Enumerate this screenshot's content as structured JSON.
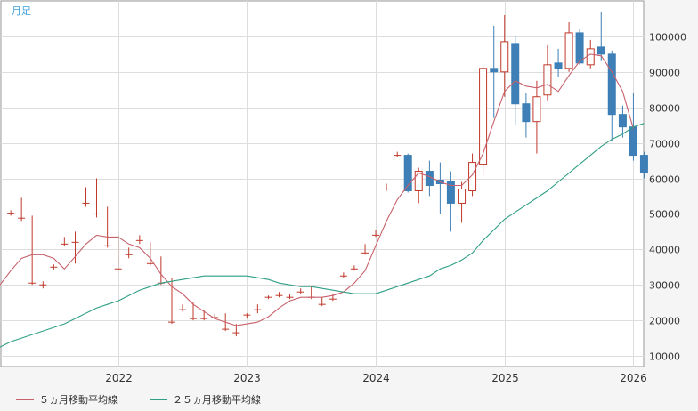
{
  "period_label": "月足",
  "legend": [
    {
      "label": "５ヵ月移動平均線",
      "color": "#c8616b"
    },
    {
      "label": "２５ヵ月移動平均線",
      "color": "#2f9f85"
    }
  ],
  "colors": {
    "up": "#c0392b",
    "down": "#3d7fb6",
    "grid": "#dddddd",
    "axis": "#999999",
    "background": "#f5f5f5"
  },
  "chart_data": {
    "type": "candlestick",
    "x_ticks": [
      {
        "label": "2022",
        "t": 2022
      },
      {
        "label": "2023",
        "t": 2023
      },
      {
        "label": "2024",
        "t": 2024
      },
      {
        "label": "2025",
        "t": 2025
      },
      {
        "label": "2026",
        "t": 2026
      }
    ],
    "x_range": [
      2021.09,
      2026.08
    ],
    "y_ticks": [
      {
        "label": "10000",
        "v": 10000
      },
      {
        "label": "20000",
        "v": 20000
      },
      {
        "label": "30000",
        "v": 30000
      },
      {
        "label": "40000",
        "v": 40000
      },
      {
        "label": "50000",
        "v": 50000
      },
      {
        "label": "60000",
        "v": 60000
      },
      {
        "label": "70000",
        "v": 70000
      },
      {
        "label": "80000",
        "v": 80000
      },
      {
        "label": "90000",
        "v": 90000
      },
      {
        "label": "100000",
        "v": 100000
      }
    ],
    "ylim": [
      7000,
      110000
    ],
    "candles": [
      {
        "t": 2021.167,
        "o": 50200,
        "h": 51000,
        "l": 49500,
        "c": 50200
      },
      {
        "t": 2021.25,
        "o": 48800,
        "h": 54500,
        "l": 48000,
        "c": 48800
      },
      {
        "t": 2021.333,
        "o": 30500,
        "h": 49500,
        "l": 30000,
        "c": 30500
      },
      {
        "t": 2021.417,
        "o": 30000,
        "h": 31000,
        "l": 29000,
        "c": 30000
      },
      {
        "t": 2021.5,
        "o": 35000,
        "h": 35800,
        "l": 34200,
        "c": 35000
      },
      {
        "t": 2021.583,
        "o": 41500,
        "h": 43500,
        "l": 41000,
        "c": 41500
      },
      {
        "t": 2021.667,
        "o": 42000,
        "h": 45000,
        "l": 36000,
        "c": 42000
      },
      {
        "t": 2021.75,
        "o": 53000,
        "h": 57500,
        "l": 52000,
        "c": 53000
      },
      {
        "t": 2021.833,
        "o": 50000,
        "h": 60000,
        "l": 49000,
        "c": 50000
      },
      {
        "t": 2021.917,
        "o": 41000,
        "h": 52000,
        "l": 40500,
        "c": 41000
      },
      {
        "t": 2022.0,
        "o": 34500,
        "h": 44000,
        "l": 34000,
        "c": 34500
      },
      {
        "t": 2022.083,
        "o": 38500,
        "h": 40500,
        "l": 37500,
        "c": 38500
      },
      {
        "t": 2022.167,
        "o": 42500,
        "h": 44000,
        "l": 41500,
        "c": 42500
      },
      {
        "t": 2022.25,
        "o": 36000,
        "h": 42000,
        "l": 35500,
        "c": 36000
      },
      {
        "t": 2022.333,
        "o": 30500,
        "h": 38000,
        "l": 30000,
        "c": 30500
      },
      {
        "t": 2022.417,
        "o": 19500,
        "h": 32000,
        "l": 19000,
        "c": 19500
      },
      {
        "t": 2022.5,
        "o": 23000,
        "h": 24500,
        "l": 22500,
        "c": 23000
      },
      {
        "t": 2022.583,
        "o": 20500,
        "h": 25000,
        "l": 20000,
        "c": 20500
      },
      {
        "t": 2022.667,
        "o": 20500,
        "h": 23000,
        "l": 20000,
        "c": 20500
      },
      {
        "t": 2022.75,
        "o": 20800,
        "h": 21800,
        "l": 20300,
        "c": 20800
      },
      {
        "t": 2022.833,
        "o": 17500,
        "h": 22000,
        "l": 17000,
        "c": 17500
      },
      {
        "t": 2022.917,
        "o": 16500,
        "h": 19000,
        "l": 15500,
        "c": 16500
      },
      {
        "t": 2023.0,
        "o": 21500,
        "h": 22000,
        "l": 20500,
        "c": 21500
      },
      {
        "t": 2023.083,
        "o": 23000,
        "h": 24500,
        "l": 22000,
        "c": 23000
      },
      {
        "t": 2023.167,
        "o": 26500,
        "h": 27000,
        "l": 26000,
        "c": 26500
      },
      {
        "t": 2023.25,
        "o": 27000,
        "h": 28000,
        "l": 26500,
        "c": 27000
      },
      {
        "t": 2023.333,
        "o": 26500,
        "h": 27500,
        "l": 26000,
        "c": 26500
      },
      {
        "t": 2023.417,
        "o": 28000,
        "h": 29000,
        "l": 27500,
        "c": 28000
      },
      {
        "t": 2023.5,
        "o": 26500,
        "h": 29500,
        "l": 26000,
        "c": 26500
      },
      {
        "t": 2023.583,
        "o": 24500,
        "h": 26500,
        "l": 24000,
        "c": 24500
      },
      {
        "t": 2023.667,
        "o": 26000,
        "h": 27500,
        "l": 25500,
        "c": 26000
      },
      {
        "t": 2023.75,
        "o": 32500,
        "h": 33500,
        "l": 32000,
        "c": 32500
      },
      {
        "t": 2023.833,
        "o": 34500,
        "h": 35500,
        "l": 34000,
        "c": 34500
      },
      {
        "t": 2023.917,
        "o": 39000,
        "h": 41500,
        "l": 38500,
        "c": 39000
      },
      {
        "t": 2024.0,
        "o": 44000,
        "h": 45500,
        "l": 43500,
        "c": 44000
      },
      {
        "t": 2024.083,
        "o": 57000,
        "h": 58500,
        "l": 56500,
        "c": 57000
      },
      {
        "t": 2024.167,
        "o": 66500,
        "h": 67500,
        "l": 66000,
        "c": 66500
      },
      {
        "t": 2024.25,
        "o": 66500,
        "h": 67000,
        "l": 56000,
        "c": 56500
      },
      {
        "t": 2024.333,
        "o": 56500,
        "h": 63000,
        "l": 53000,
        "c": 62000
      },
      {
        "t": 2024.417,
        "o": 62000,
        "h": 65000,
        "l": 55000,
        "c": 58000
      },
      {
        "t": 2024.5,
        "o": 59500,
        "h": 64500,
        "l": 50000,
        "c": 58500
      },
      {
        "t": 2024.583,
        "o": 59000,
        "h": 62000,
        "l": 45000,
        "c": 53000
      },
      {
        "t": 2024.667,
        "o": 53000,
        "h": 59000,
        "l": 47500,
        "c": 57000
      },
      {
        "t": 2024.75,
        "o": 56500,
        "h": 67000,
        "l": 55000,
        "c": 64500
      },
      {
        "t": 2024.833,
        "o": 64000,
        "h": 92000,
        "l": 61000,
        "c": 91000
      },
      {
        "t": 2024.917,
        "o": 91000,
        "h": 103000,
        "l": 77000,
        "c": 90000
      },
      {
        "t": 2025.0,
        "o": 90000,
        "h": 106000,
        "l": 83000,
        "c": 98500
      },
      {
        "t": 2025.083,
        "o": 98000,
        "h": 100000,
        "l": 75000,
        "c": 81000
      },
      {
        "t": 2025.167,
        "o": 81000,
        "h": 84000,
        "l": 71500,
        "c": 76000
      },
      {
        "t": 2025.25,
        "o": 76000,
        "h": 87500,
        "l": 67000,
        "c": 83000
      },
      {
        "t": 2025.333,
        "o": 83500,
        "h": 97500,
        "l": 82000,
        "c": 92000
      },
      {
        "t": 2025.417,
        "o": 92500,
        "h": 96500,
        "l": 88500,
        "c": 91000
      },
      {
        "t": 2025.5,
        "o": 91000,
        "h": 104000,
        "l": 90000,
        "c": 101000
      },
      {
        "t": 2025.583,
        "o": 101000,
        "h": 102000,
        "l": 92000,
        "c": 92500
      },
      {
        "t": 2025.667,
        "o": 92000,
        "h": 99000,
        "l": 91000,
        "c": 96500
      },
      {
        "t": 2025.75,
        "o": 97000,
        "h": 107000,
        "l": 93000,
        "c": 95000
      },
      {
        "t": 2025.833,
        "o": 95000,
        "h": 96000,
        "l": 70500,
        "c": 78000
      },
      {
        "t": 2025.917,
        "o": 78000,
        "h": 80500,
        "l": 71500,
        "c": 74500
      },
      {
        "t": 2026.0,
        "o": 74500,
        "h": 84000,
        "l": 65000,
        "c": 66500
      },
      {
        "t": 2026.083,
        "o": 66500,
        "h": 67500,
        "l": 60000,
        "c": 61500
      }
    ],
    "series": [
      {
        "name": "５ヵ月移動平均線",
        "color": "#c8616b",
        "points": [
          [
            2021.083,
            30000
          ],
          [
            2021.167,
            34000
          ],
          [
            2021.25,
            37500
          ],
          [
            2021.333,
            38500
          ],
          [
            2021.417,
            38500
          ],
          [
            2021.5,
            37500
          ],
          [
            2021.583,
            34500
          ],
          [
            2021.667,
            38000
          ],
          [
            2021.75,
            41500
          ],
          [
            2021.833,
            44000
          ],
          [
            2021.917,
            43500
          ],
          [
            2022.0,
            43500
          ],
          [
            2022.083,
            41500
          ],
          [
            2022.167,
            40500
          ],
          [
            2022.25,
            37500
          ],
          [
            2022.333,
            33000
          ],
          [
            2022.417,
            29500
          ],
          [
            2022.5,
            27500
          ],
          [
            2022.583,
            24500
          ],
          [
            2022.667,
            22500
          ],
          [
            2022.75,
            20500
          ],
          [
            2022.833,
            19500
          ],
          [
            2022.917,
            18500
          ],
          [
            2023.0,
            19000
          ],
          [
            2023.083,
            19500
          ],
          [
            2023.167,
            21000
          ],
          [
            2023.25,
            23500
          ],
          [
            2023.333,
            25500
          ],
          [
            2023.417,
            26500
          ],
          [
            2023.5,
            26500
          ],
          [
            2023.583,
            26500
          ],
          [
            2023.667,
            27000
          ],
          [
            2023.75,
            28000
          ],
          [
            2023.833,
            30500
          ],
          [
            2023.917,
            34000
          ],
          [
            2024.0,
            41000
          ],
          [
            2024.083,
            48000
          ],
          [
            2024.167,
            54000
          ],
          [
            2024.25,
            58000
          ],
          [
            2024.333,
            61500
          ],
          [
            2024.417,
            60500
          ],
          [
            2024.5,
            59000
          ],
          [
            2024.583,
            58000
          ],
          [
            2024.667,
            58000
          ],
          [
            2024.75,
            61000
          ],
          [
            2024.833,
            67000
          ],
          [
            2024.917,
            76000
          ],
          [
            2025.0,
            84500
          ],
          [
            2025.083,
            87500
          ],
          [
            2025.167,
            86000
          ],
          [
            2025.25,
            85500
          ],
          [
            2025.333,
            86500
          ],
          [
            2025.417,
            84500
          ],
          [
            2025.5,
            89000
          ],
          [
            2025.583,
            93000
          ],
          [
            2025.667,
            95000
          ],
          [
            2025.75,
            94500
          ],
          [
            2025.833,
            90000
          ],
          [
            2025.917,
            84500
          ],
          [
            2026.0,
            74000
          ]
        ]
      },
      {
        "name": "２５ヵ月移動平均線",
        "color": "#2f9f85",
        "points": [
          [
            2021.083,
            12500
          ],
          [
            2021.167,
            14000
          ],
          [
            2021.25,
            15000
          ],
          [
            2021.333,
            16000
          ],
          [
            2021.417,
            17000
          ],
          [
            2021.5,
            18000
          ],
          [
            2021.583,
            19000
          ],
          [
            2021.667,
            20500
          ],
          [
            2021.75,
            22000
          ],
          [
            2021.833,
            23500
          ],
          [
            2021.917,
            24500
          ],
          [
            2022.0,
            25500
          ],
          [
            2022.083,
            27000
          ],
          [
            2022.167,
            28500
          ],
          [
            2022.25,
            29500
          ],
          [
            2022.333,
            30500
          ],
          [
            2022.417,
            31000
          ],
          [
            2022.5,
            31500
          ],
          [
            2022.583,
            32000
          ],
          [
            2022.667,
            32500
          ],
          [
            2022.75,
            32500
          ],
          [
            2022.833,
            32500
          ],
          [
            2022.917,
            32500
          ],
          [
            2023.0,
            32500
          ],
          [
            2023.083,
            32000
          ],
          [
            2023.167,
            31500
          ],
          [
            2023.25,
            30500
          ],
          [
            2023.333,
            30000
          ],
          [
            2023.417,
            29500
          ],
          [
            2023.5,
            29500
          ],
          [
            2023.583,
            29000
          ],
          [
            2023.667,
            28500
          ],
          [
            2023.75,
            28000
          ],
          [
            2023.833,
            27500
          ],
          [
            2023.917,
            27500
          ],
          [
            2024.0,
            27500
          ],
          [
            2024.083,
            28500
          ],
          [
            2024.167,
            29500
          ],
          [
            2024.25,
            30500
          ],
          [
            2024.333,
            31500
          ],
          [
            2024.417,
            32500
          ],
          [
            2024.5,
            34500
          ],
          [
            2024.583,
            35500
          ],
          [
            2024.667,
            37000
          ],
          [
            2024.75,
            39000
          ],
          [
            2024.833,
            42500
          ],
          [
            2024.917,
            45500
          ],
          [
            2025.0,
            48500
          ],
          [
            2025.083,
            50500
          ],
          [
            2025.167,
            52500
          ],
          [
            2025.25,
            54500
          ],
          [
            2025.333,
            56500
          ],
          [
            2025.417,
            59000
          ],
          [
            2025.5,
            61500
          ],
          [
            2025.583,
            64000
          ],
          [
            2025.667,
            66500
          ],
          [
            2025.75,
            69000
          ],
          [
            2025.833,
            71000
          ],
          [
            2025.917,
            72500
          ],
          [
            2026.0,
            74500
          ],
          [
            2026.083,
            75500
          ]
        ]
      }
    ]
  }
}
